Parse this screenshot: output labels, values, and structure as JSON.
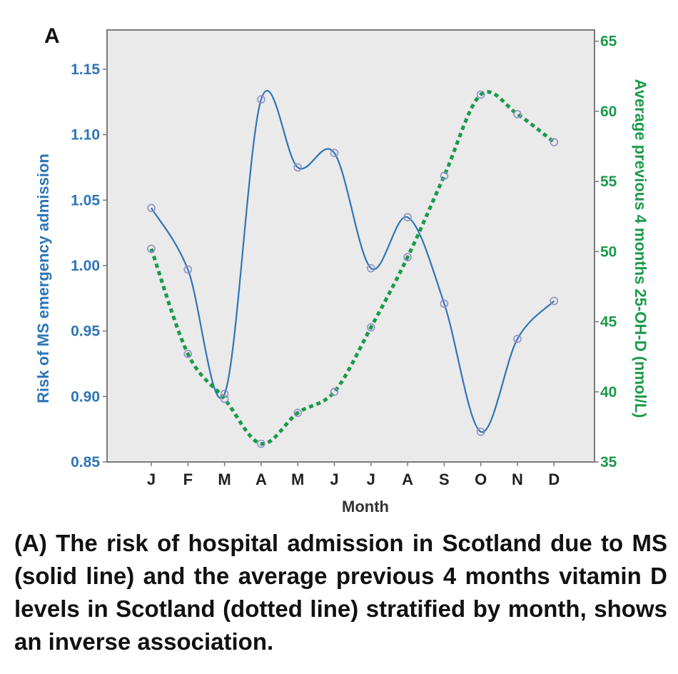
{
  "panel_label": "A",
  "caption": "(A) The risk of hospital admission in Scotland due to MS (solid line) and the average previous 4 months vitamin D levels in Scotland (dotted line) stratified by month, shows an inverse association.",
  "colors": {
    "risk": "#2e75b6",
    "vitd": "#1a9a4a",
    "marker": "#8f8fc8",
    "plot_bg": "#eaeaea"
  },
  "chart_data": {
    "type": "line",
    "xlabel": "Month",
    "categories": [
      "J",
      "F",
      "M",
      "A",
      "M",
      "J",
      "J",
      "A",
      "S",
      "O",
      "N",
      "D"
    ],
    "y_left": {
      "label": "Risk of MS emergency admission",
      "ticks": [
        "0.85",
        "0.90",
        "0.95",
        "1.00",
        "1.05",
        "1.10",
        "1.15"
      ],
      "range": [
        0.85,
        1.18
      ]
    },
    "y_right": {
      "label": "Average previous 4 months 25-OH-D (nmol/L)",
      "ticks": [
        "35",
        "40",
        "45",
        "50",
        "55",
        "60",
        "65"
      ],
      "range": [
        35,
        65.8
      ]
    },
    "series": [
      {
        "axis": "left",
        "style": "solid",
        "values": [
          1.044,
          0.997,
          0.902,
          1.127,
          1.075,
          1.086,
          0.998,
          1.037,
          0.971,
          0.873,
          0.944,
          0.973
        ]
      },
      {
        "axis": "right",
        "style": "dotted",
        "values": [
          50.2,
          42.7,
          39.5,
          36.3,
          38.5,
          40.0,
          44.6,
          49.6,
          55.4,
          61.2,
          59.8,
          57.8
        ]
      }
    ],
    "grid": false,
    "legend": "none"
  }
}
